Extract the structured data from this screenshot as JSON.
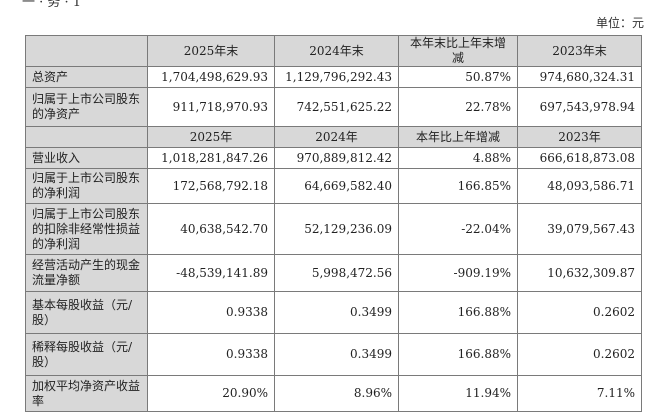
{
  "top_fragment": "一 · 务 · 1",
  "unit": "单位：元",
  "table1": {
    "headers": [
      "",
      "2025年末",
      "2024年末",
      "本年末比上年末增减",
      "2023年末"
    ],
    "rows": [
      {
        "label": "总资产",
        "values": [
          "1,704,498,629.93",
          "1,129,796,292.43",
          "50.87%",
          "974,680,324.31"
        ]
      },
      {
        "label": "归属于上市公司股东的净资产",
        "values": [
          "911,718,970.93",
          "742,551,625.22",
          "22.78%",
          "697,543,978.94"
        ]
      }
    ]
  },
  "table2": {
    "headers": [
      "",
      "2025年",
      "2024年",
      "本年比上年增减",
      "2023年"
    ],
    "rows": [
      {
        "label": "营业收入",
        "values": [
          "1,018,281,847.26",
          "970,889,812.42",
          "4.88%",
          "666,618,873.08"
        ]
      },
      {
        "label": "归属于上市公司股东的净利润",
        "values": [
          "172,568,792.18",
          "64,669,582.40",
          "166.85%",
          "48,093,586.71"
        ]
      },
      {
        "label": "归属于上市公司股东的扣除非经常性损益的净利润",
        "values": [
          "40,638,542.70",
          "52,129,236.09",
          "-22.04%",
          "39,079,567.43"
        ]
      },
      {
        "label": "经营活动产生的现金流量净额",
        "values": [
          "-48,539,141.89",
          "5,998,472.56",
          "-909.19%",
          "10,632,309.87"
        ]
      },
      {
        "label": "基本每股收益（元/股）",
        "values": [
          "0.9338",
          "0.3499",
          "166.88%",
          "0.2602"
        ]
      },
      {
        "label": "稀释每股收益（元/股）",
        "values": [
          "0.9338",
          "0.3499",
          "166.88%",
          "0.2602"
        ]
      },
      {
        "label": "加权平均净资产收益率",
        "values": [
          "20.90%",
          "8.96%",
          "11.94%",
          "7.11%"
        ]
      }
    ]
  }
}
